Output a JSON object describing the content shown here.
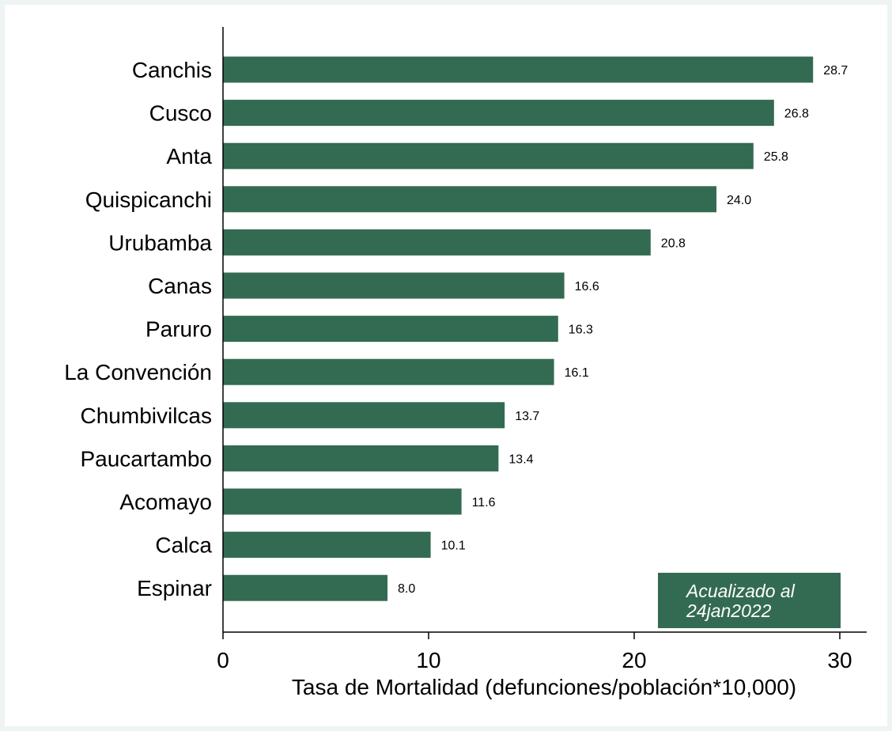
{
  "chart_data": {
    "type": "bar",
    "orientation": "horizontal",
    "categories": [
      "Canchis",
      "Cusco",
      "Anta",
      "Quispicanchi",
      "Urubamba",
      "Canas",
      "Paruro",
      "La Convención",
      "Chumbivilcas",
      "Paucartambo",
      "Acomayo",
      "Calca",
      "Espinar"
    ],
    "values": [
      28.7,
      26.8,
      25.8,
      24.0,
      20.8,
      16.6,
      16.3,
      16.1,
      13.7,
      13.4,
      11.6,
      10.1,
      8.0
    ],
    "value_labels": [
      "28.7",
      "26.8",
      "25.8",
      "24.0",
      "20.8",
      "16.6",
      "16.3",
      "16.1",
      "13.7",
      "13.4",
      "11.6",
      "10.1",
      "8.0"
    ],
    "xlabel": "Tasa de Mortalidad (defunciones/población*10,000)",
    "xticks": [
      0,
      10,
      20,
      30
    ],
    "xlim": [
      0,
      31.2
    ],
    "grid": false,
    "bar_color": "#336b52",
    "annotation": {
      "lines": [
        "Acualizado al",
        "24jan2022"
      ],
      "placement": "bottom-right",
      "background": "#336b52",
      "text_color": "#ffffff"
    }
  }
}
